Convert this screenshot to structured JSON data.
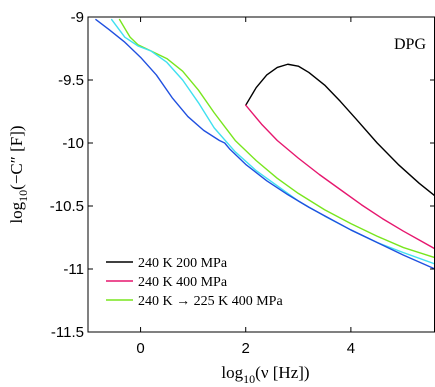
{
  "chart_data": {
    "type": "line",
    "panel_label": "DPG",
    "xlabel_parts": {
      "pre": "log",
      "sub": "10",
      "post": "(ν [Hz])"
    },
    "ylabel_parts": {
      "pre": "log",
      "sub": "10",
      "post": "(−C″ [F])"
    },
    "xlim": [
      -1,
      5.6
    ],
    "ylim": [
      -11.5,
      -9
    ],
    "xticks": [
      0,
      2,
      4
    ],
    "yticks": [
      -9,
      -9.5,
      -10,
      -10.5,
      -11,
      -11.5
    ],
    "ytick_labels": [
      "-9",
      "-9.5",
      "-10",
      "-10.5",
      "-11",
      "-11.5"
    ],
    "grid": false,
    "legend_position": "bottom-left",
    "legend": [
      {
        "label": "240 K 200 MPa",
        "color": "#000000"
      },
      {
        "label": "240 K 400 MPa",
        "color": "#e6176e"
      },
      {
        "label": "240 K → 225 K 400 MPa",
        "color": "#78e61e"
      }
    ],
    "series": [
      {
        "color": "#000000",
        "x": [
          2.0,
          2.2,
          2.4,
          2.6,
          2.8,
          3.0,
          3.2,
          3.5,
          3.8,
          4.1,
          4.5,
          4.9,
          5.3,
          5.6
        ],
        "y": [
          -9.7,
          -9.56,
          -9.46,
          -9.4,
          -9.375,
          -9.39,
          -9.44,
          -9.54,
          -9.67,
          -9.81,
          -10.0,
          -10.17,
          -10.32,
          -10.42
        ]
      },
      {
        "color": "#e6176e",
        "x": [
          2.0,
          2.3,
          2.6,
          3.0,
          3.4,
          3.8,
          4.2,
          4.6,
          5.0,
          5.3,
          5.6
        ],
        "y": [
          -9.7,
          -9.85,
          -9.98,
          -10.12,
          -10.25,
          -10.37,
          -10.49,
          -10.6,
          -10.7,
          -10.77,
          -10.84
        ]
      },
      {
        "color": "#78e61e",
        "x": [
          -0.4,
          -0.2,
          -0.05,
          0.2,
          0.5,
          0.8,
          1.1,
          1.4,
          1.8,
          2.2,
          2.6,
          3.0,
          3.5,
          4.0,
          4.5,
          5.0,
          5.6
        ],
        "y": [
          -9.02,
          -9.16,
          -9.22,
          -9.27,
          -9.33,
          -9.43,
          -9.58,
          -9.76,
          -9.98,
          -10.14,
          -10.28,
          -10.4,
          -10.53,
          -10.64,
          -10.74,
          -10.83,
          -10.91
        ]
      },
      {
        "color": "#40e0f0",
        "x": [
          -0.55,
          -0.3,
          -0.05,
          0.2,
          0.5,
          0.8,
          1.1,
          1.4,
          1.8,
          2.2,
          2.6,
          3.0,
          3.5,
          4.0,
          4.5,
          5.0,
          5.6
        ],
        "y": [
          -9.02,
          -9.16,
          -9.23,
          -9.27,
          -9.36,
          -9.5,
          -9.68,
          -9.88,
          -10.07,
          -10.22,
          -10.34,
          -10.46,
          -10.58,
          -10.69,
          -10.79,
          -10.87,
          -10.96
        ]
      },
      {
        "color": "#2050e0",
        "x": [
          -0.85,
          -0.6,
          -0.3,
          0.0,
          0.3,
          0.6,
          0.9,
          1.2,
          1.5,
          1.6,
          1.7,
          2.0,
          2.4,
          2.8,
          3.2,
          3.6,
          4.0,
          4.5,
          5.0,
          5.6
        ],
        "y": [
          -9.02,
          -9.1,
          -9.2,
          -9.32,
          -9.46,
          -9.64,
          -9.79,
          -9.9,
          -9.98,
          -10.0,
          -10.05,
          -10.17,
          -10.3,
          -10.41,
          -10.51,
          -10.6,
          -10.69,
          -10.79,
          -10.89,
          -11.0
        ]
      }
    ]
  }
}
